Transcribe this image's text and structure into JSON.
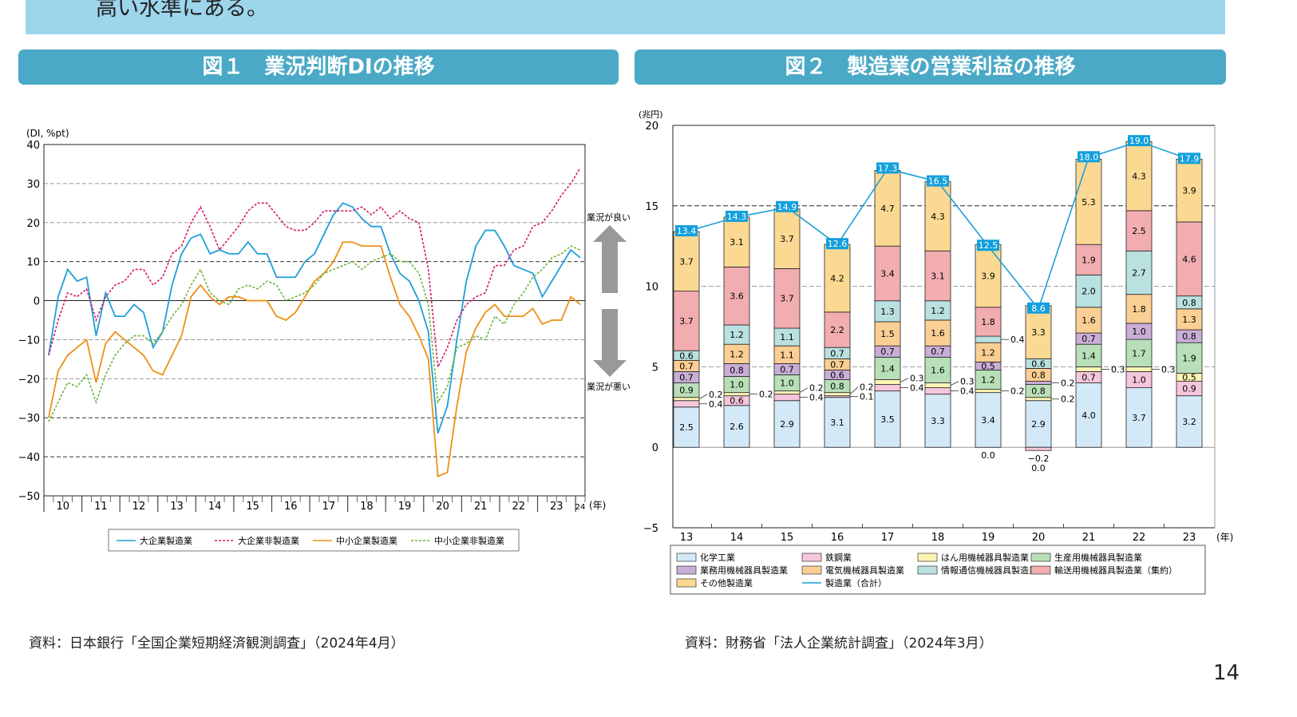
{
  "banner": {
    "text": "高い水準にある。"
  },
  "figure1": {
    "title": "図１　業況判断DIの推移",
    "source": "資料：日本銀行「全国企業短期経済観測調査」（2024年4月）"
  },
  "figure2": {
    "title": "図２　製造業の営業利益の推移",
    "source": "資料：財務省「法人企業統計調査」（2024年3月）"
  },
  "page_number": "14",
  "chart_data": [
    {
      "type": "line",
      "ylabel": "(DI, %pt)",
      "xlabel": "(年)",
      "ylim": [
        -50,
        40
      ],
      "yticks": [
        40,
        30,
        20,
        10,
        0,
        -10,
        -20,
        -30,
        -40,
        -50
      ],
      "x_tick_labels": [
        "10",
        "11",
        "12",
        "13",
        "14",
        "15",
        "16",
        "17",
        "18",
        "19",
        "20",
        "21",
        "22",
        "23",
        "24"
      ],
      "x_frequency": "quarterly",
      "x_start": "2010Q1",
      "x_end": "2024Q1",
      "legend_position": "bottom",
      "annotations": {
        "up": "業況が良い",
        "down": "業況が悪い"
      },
      "series": [
        {
          "name": "大企業製造業",
          "color": "#1f9fd8",
          "style": "solid",
          "values": [
            -14,
            1,
            8,
            5,
            6,
            -9,
            2,
            -4,
            -4,
            -1,
            -3,
            -12,
            -8,
            4,
            12,
            16,
            17,
            12,
            13,
            12,
            12,
            15,
            12,
            12,
            6,
            6,
            6,
            10,
            12,
            17,
            22,
            25,
            24,
            21,
            19,
            19,
            12,
            7,
            5,
            0,
            -8,
            -34,
            -27,
            -10,
            5,
            14,
            18,
            18,
            14,
            9,
            8,
            7,
            1,
            5,
            9,
            13,
            11
          ]
        },
        {
          "name": "大企業非製造業",
          "color": "#d6186e",
          "style": "dotted",
          "values": [
            -14,
            -5,
            2,
            1,
            3,
            -5,
            1,
            4,
            5,
            8,
            8,
            4,
            6,
            12,
            14,
            20,
            24,
            19,
            13,
            16,
            19,
            23,
            25,
            25,
            22,
            19,
            18,
            18,
            20,
            23,
            23,
            23,
            23,
            24,
            22,
            24,
            21,
            23,
            21,
            20,
            8,
            -17,
            -12,
            -5,
            -1,
            1,
            2,
            9,
            9,
            13,
            14,
            19,
            20,
            23,
            27,
            30,
            34
          ]
        },
        {
          "name": "中小企業製造業",
          "color": "#ee8f14",
          "style": "solid",
          "values": [
            -30,
            -18,
            -14,
            -12,
            -10,
            -21,
            -11,
            -8,
            -10,
            -12,
            -14,
            -18,
            -19,
            -14,
            -9,
            1,
            4,
            1,
            -1,
            1,
            1,
            0,
            0,
            0,
            -4,
            -5,
            -3,
            1,
            5,
            7,
            10,
            15,
            15,
            14,
            14,
            14,
            6,
            -1,
            -4,
            -9,
            -15,
            -45,
            -44,
            -27,
            -13,
            -7,
            -3,
            -1,
            -4,
            -4,
            -4,
            -2,
            -6,
            -5,
            -5,
            1,
            -1
          ]
        },
        {
          "name": "中小企業非製造業",
          "color": "#6bb43a",
          "style": "dotted",
          "values": [
            -31,
            -26,
            -21,
            -22,
            -19,
            -26,
            -19,
            -14,
            -11,
            -9,
            -9,
            -11,
            -8,
            -4,
            -1,
            4,
            8,
            2,
            0,
            -1,
            3,
            4,
            3,
            5,
            4,
            0,
            1,
            2,
            4,
            7,
            8,
            9,
            10,
            8,
            10,
            11,
            12,
            10,
            10,
            7,
            -1,
            -26,
            -22,
            -12,
            -11,
            -9,
            -10,
            -4,
            -6,
            -1,
            2,
            6,
            8,
            11,
            12,
            14,
            13
          ]
        }
      ]
    },
    {
      "type": "bar",
      "stacked": true,
      "ylabel": "(兆円)",
      "xlabel": "(年)",
      "ylim": [
        -5,
        20
      ],
      "yticks": [
        20,
        15,
        10,
        5,
        0,
        -5
      ],
      "categories": [
        "13",
        "14",
        "15",
        "16",
        "17",
        "18",
        "19",
        "20",
        "21",
        "22",
        "23"
      ],
      "legend_position": "bottom",
      "series": [
        {
          "name": "化学工業",
          "color": "#d3e9f8",
          "values": [
            2.5,
            2.6,
            2.9,
            3.1,
            3.5,
            3.3,
            3.4,
            2.9,
            4.0,
            3.7,
            3.2
          ]
        },
        {
          "name": "鉄鋼業",
          "color": "#f6c6dc",
          "values": [
            0.4,
            0.6,
            0.4,
            0.1,
            0.4,
            0.4,
            0.0,
            -0.2,
            0.7,
            1.0,
            0.9
          ]
        },
        {
          "name": "はん用機械器具製造業",
          "color": "#fdf4b4",
          "values": [
            0.2,
            0.2,
            0.2,
            0.2,
            0.3,
            0.3,
            0.2,
            0.2,
            0.3,
            0.3,
            0.5
          ]
        },
        {
          "name": "生産用機械器具製造業",
          "color": "#b9dfb9",
          "values": [
            0.9,
            1.0,
            1.0,
            0.8,
            1.4,
            1.6,
            1.2,
            0.8,
            1.4,
            1.7,
            1.9
          ]
        },
        {
          "name": "業務用機械器具製造業",
          "color": "#c9aed6",
          "values": [
            0.7,
            0.8,
            0.7,
            0.6,
            0.7,
            0.7,
            0.5,
            0.2,
            0.7,
            1.0,
            0.8
          ]
        },
        {
          "name": "電気機械器具製造業",
          "color": "#fbcf94",
          "values": [
            0.7,
            1.2,
            1.1,
            0.7,
            1.5,
            1.6,
            1.2,
            0.8,
            1.6,
            1.8,
            1.3
          ]
        },
        {
          "name": "情報通信機械器具製造業",
          "color": "#b9e1e0",
          "values": [
            0.6,
            1.2,
            1.1,
            0.7,
            1.3,
            1.2,
            0.4,
            0.6,
            2.0,
            2.7,
            0.8
          ]
        },
        {
          "name": "輸送用機械器具製造業（集約）",
          "color": "#f2adb0",
          "values": [
            3.7,
            3.6,
            3.7,
            2.2,
            3.4,
            3.1,
            1.8,
            0.0,
            1.9,
            2.5,
            4.6
          ]
        },
        {
          "name": "その他製造業",
          "color": "#fcd992",
          "values": [
            3.7,
            3.1,
            3.7,
            4.2,
            4.7,
            4.3,
            3.9,
            3.3,
            5.3,
            4.3,
            3.9
          ]
        }
      ],
      "total": {
        "name": "製造業（合計）",
        "color": "#1f9fd8",
        "values": [
          13.4,
          14.3,
          14.9,
          12.6,
          17.3,
          16.5,
          12.5,
          8.6,
          18.0,
          19.0,
          17.9
        ]
      }
    }
  ]
}
